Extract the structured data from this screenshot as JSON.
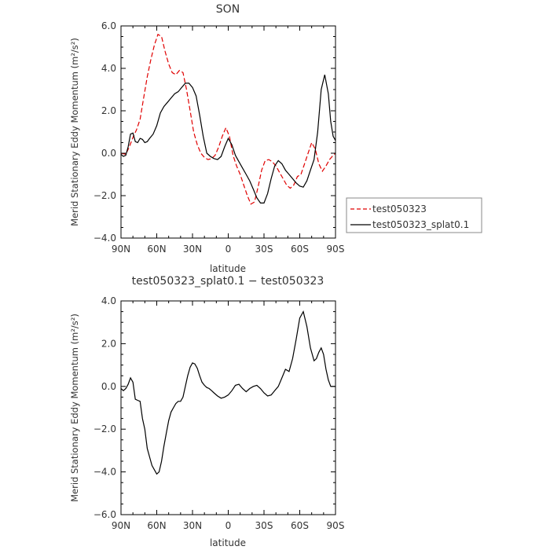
{
  "chart_data": [
    {
      "type": "line",
      "title": "SON",
      "xlabel": "latitude",
      "ylabel": "Merid Stationary Eddy Momentum (m²/s²)",
      "x_tick_labels": [
        "90N",
        "60N",
        "30N",
        "0",
        "30S",
        "60S",
        "90S"
      ],
      "x_tick_values": [
        90,
        60,
        30,
        0,
        -30,
        -60,
        -90
      ],
      "xlim": [
        90,
        -90
      ],
      "ylim": [
        -4,
        6
      ],
      "y_tick_values": [
        -4,
        -2,
        0,
        2,
        4,
        6
      ],
      "y_tick_labels": [
        "−4.0",
        "−2.0",
        "0.0",
        "2.0",
        "4.0",
        "6.0"
      ],
      "legend_position": "right",
      "series": [
        {
          "name": "test050323",
          "color": "#e00000",
          "dash": "dashed",
          "x": [
            90,
            86,
            83,
            80,
            77,
            74,
            71,
            68,
            65,
            62,
            59,
            56,
            53,
            50,
            47,
            44,
            41,
            38,
            35,
            32,
            29,
            26,
            23,
            20,
            17,
            14,
            11,
            8,
            5,
            2,
            -1,
            -4,
            -7,
            -10,
            -13,
            -16,
            -19,
            -22,
            -25,
            -28,
            -31,
            -34,
            -37,
            -40,
            -43,
            -46,
            -49,
            -52,
            -55,
            -58,
            -61,
            -64,
            -67,
            -70,
            -73,
            -76,
            -79,
            -82,
            -85,
            -88,
            -90
          ],
          "y": [
            0.0,
            -0.05,
            0.3,
            0.75,
            1.1,
            1.6,
            2.6,
            3.6,
            4.4,
            5.1,
            5.6,
            5.5,
            4.8,
            4.2,
            3.8,
            3.7,
            3.9,
            3.8,
            3.0,
            2.0,
            1.0,
            0.4,
            0.0,
            -0.2,
            -0.3,
            -0.25,
            -0.1,
            0.3,
            0.8,
            1.2,
            0.8,
            -0.1,
            -0.6,
            -1.0,
            -1.5,
            -2.0,
            -2.4,
            -2.3,
            -1.6,
            -0.8,
            -0.35,
            -0.3,
            -0.4,
            -0.6,
            -0.9,
            -1.2,
            -1.5,
            -1.65,
            -1.5,
            -1.1,
            -1.0,
            -0.5,
            0.0,
            0.5,
            0.2,
            -0.5,
            -0.85,
            -0.6,
            -0.3,
            -0.1,
            0.0
          ]
        },
        {
          "name": "test050323_splat0.1",
          "color": "#000000",
          "dash": "solid",
          "x": [
            90,
            88,
            86,
            84,
            82,
            80,
            78,
            76,
            74,
            72,
            70,
            68,
            66,
            63,
            60,
            57,
            54,
            51,
            48,
            45,
            42,
            39,
            36,
            33,
            30,
            27,
            24,
            21,
            18,
            15,
            12,
            9,
            6,
            3,
            0,
            -3,
            -6,
            -9,
            -12,
            -15,
            -18,
            -21,
            -24,
            -27,
            -30,
            -33,
            -36,
            -39,
            -42,
            -45,
            -48,
            -51,
            -54,
            -57,
            -60,
            -63,
            -66,
            -69,
            -72,
            -75,
            -78,
            -81,
            -84,
            -86,
            -88,
            -90
          ],
          "y": [
            -0.05,
            -0.15,
            -0.1,
            0.3,
            0.9,
            0.95,
            0.55,
            0.5,
            0.7,
            0.65,
            0.5,
            0.55,
            0.7,
            0.9,
            1.3,
            1.9,
            2.2,
            2.4,
            2.6,
            2.8,
            2.9,
            3.1,
            3.3,
            3.3,
            3.1,
            2.7,
            1.8,
            0.8,
            0.0,
            -0.15,
            -0.25,
            -0.3,
            -0.15,
            0.3,
            0.7,
            0.4,
            -0.1,
            -0.4,
            -0.7,
            -1.0,
            -1.3,
            -1.7,
            -2.1,
            -2.35,
            -2.35,
            -1.9,
            -1.2,
            -0.6,
            -0.35,
            -0.5,
            -0.8,
            -1.0,
            -1.2,
            -1.4,
            -1.55,
            -1.6,
            -1.3,
            -0.8,
            -0.3,
            1.0,
            3.0,
            3.7,
            2.8,
            1.5,
            0.8,
            0.6
          ]
        }
      ]
    },
    {
      "type": "line",
      "title": "test050323_splat0.1 − test050323",
      "xlabel": "latitude",
      "ylabel": "Merid Stationary Eddy Momentum (m²/s²)",
      "x_tick_labels": [
        "90N",
        "60N",
        "30N",
        "0",
        "30S",
        "60S",
        "90S"
      ],
      "x_tick_values": [
        90,
        60,
        30,
        0,
        -30,
        -60,
        -90
      ],
      "xlim": [
        90,
        -90
      ],
      "ylim": [
        -6,
        4
      ],
      "y_tick_values": [
        -6,
        -4,
        -2,
        0,
        2,
        4
      ],
      "y_tick_labels": [
        "−6.0",
        "−4.0",
        "−2.0",
        "0.0",
        "2.0",
        "4.0"
      ],
      "series": [
        {
          "color": "#000000",
          "dash": "solid",
          "x": [
            90,
            88,
            86,
            84,
            82,
            80,
            78,
            76,
            74,
            72,
            70,
            68,
            66,
            64,
            62,
            60,
            58,
            56,
            54,
            52,
            50,
            48,
            46,
            44,
            42,
            40,
            38,
            36,
            34,
            32,
            30,
            28,
            26,
            24,
            22,
            20,
            18,
            16,
            14,
            12,
            9,
            6,
            3,
            0,
            -3,
            -6,
            -9,
            -12,
            -15,
            -18,
            -21,
            -24,
            -27,
            -30,
            -33,
            -36,
            -39,
            -42,
            -45,
            -48,
            -51,
            -54,
            -57,
            -60,
            -63,
            -66,
            -69,
            -72,
            -74,
            -76,
            -78,
            -80,
            -82,
            -84,
            -86,
            -88,
            -90
          ],
          "y": [
            -0.1,
            -0.2,
            -0.1,
            0.1,
            0.4,
            0.2,
            -0.6,
            -0.65,
            -0.7,
            -1.5,
            -2.0,
            -2.9,
            -3.3,
            -3.7,
            -3.9,
            -4.1,
            -4.0,
            -3.5,
            -2.8,
            -2.2,
            -1.6,
            -1.2,
            -1.0,
            -0.8,
            -0.7,
            -0.7,
            -0.5,
            0.0,
            0.5,
            0.9,
            1.1,
            1.05,
            0.85,
            0.5,
            0.2,
            0.05,
            -0.05,
            -0.1,
            -0.2,
            -0.3,
            -0.45,
            -0.55,
            -0.5,
            -0.4,
            -0.2,
            0.05,
            0.1,
            -0.1,
            -0.25,
            -0.1,
            0.0,
            0.05,
            -0.1,
            -0.3,
            -0.45,
            -0.4,
            -0.2,
            0.0,
            0.4,
            0.8,
            0.7,
            1.3,
            2.2,
            3.2,
            3.5,
            2.8,
            1.8,
            1.2,
            1.3,
            1.6,
            1.8,
            1.5,
            0.8,
            0.3,
            0.0,
            0.0,
            0.0
          ]
        }
      ]
    }
  ]
}
